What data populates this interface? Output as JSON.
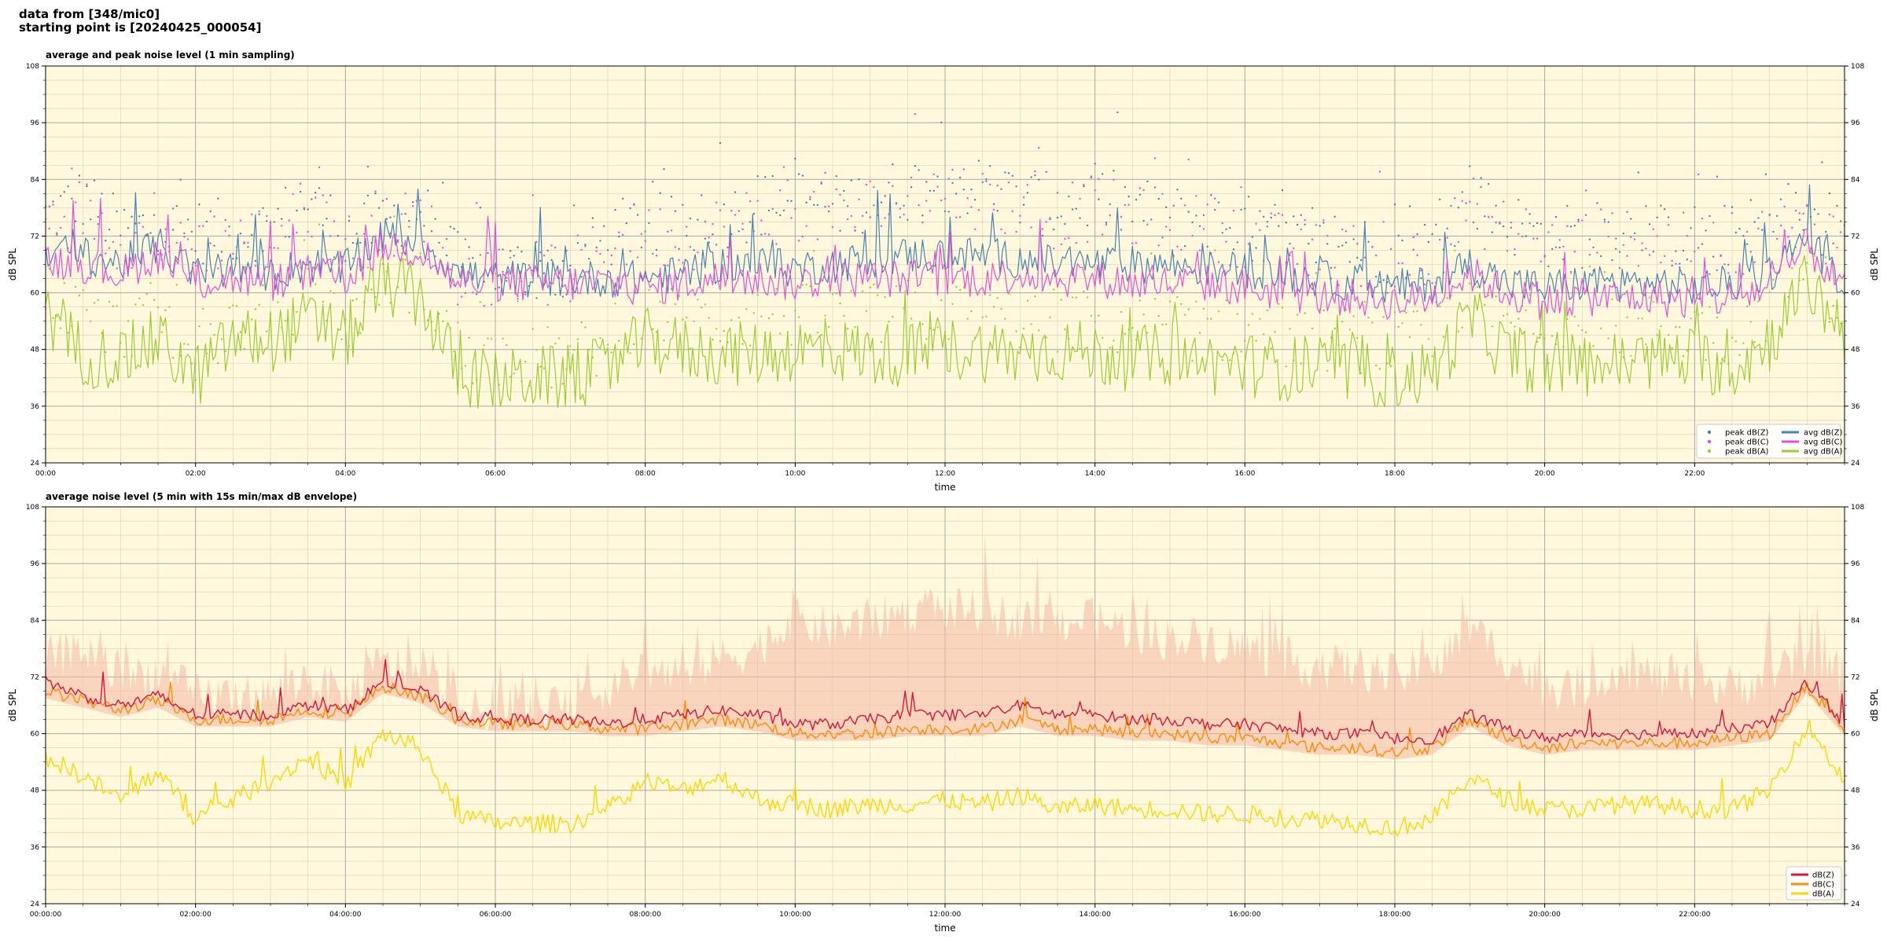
{
  "header": {
    "line1": "data from [348/mic0]",
    "line2": "starting point is [20240425_000054]"
  },
  "colors": {
    "background": "#fff8dc",
    "zcolor": "#4682b4",
    "ccolor": "#e64fd6",
    "acolor": "#9acd32",
    "bottom_z": "#dc143c",
    "bottom_c": "#ff8c00",
    "bottom_a": "#ffd700",
    "envelope": "#f4b8a4"
  },
  "chart_data": [
    {
      "type": "line",
      "title": "average and peak noise level (1 min sampling)",
      "xlabel": "time",
      "ylabel": "dB SPL",
      "xlim": [
        "00:00",
        "24:00"
      ],
      "ylim": [
        24,
        108
      ],
      "yticks": [
        "24",
        "36",
        "48",
        "60",
        "72",
        "84",
        "96",
        "108"
      ],
      "xticks": [
        "00:00",
        "02:00",
        "04:00",
        "06:00",
        "08:00",
        "10:00",
        "12:00",
        "14:00",
        "16:00",
        "18:00",
        "20:00",
        "22:00"
      ],
      "grid": true,
      "legend_position": "bottom-right",
      "x_hours": [
        0,
        0.5,
        1,
        1.5,
        2,
        2.5,
        3,
        3.5,
        4,
        4.5,
        5,
        5.5,
        6,
        6.5,
        7,
        7.5,
        8,
        8.5,
        9,
        9.5,
        10,
        10.5,
        11,
        11.5,
        12,
        12.5,
        13,
        13.5,
        14,
        14.5,
        15,
        15.5,
        16,
        16.5,
        17,
        17.5,
        18,
        18.5,
        19,
        19.5,
        20,
        20.5,
        21,
        21.5,
        22,
        22.5,
        23,
        23.5,
        24
      ],
      "series": [
        {
          "name": "avg dB(Z)",
          "kind": "line",
          "values": [
            69,
            68,
            66,
            70,
            64,
            65,
            64,
            66,
            65,
            72,
            71,
            64,
            63,
            63,
            63,
            63,
            63,
            64,
            66,
            66,
            65,
            66,
            67,
            68,
            68,
            68,
            67,
            66,
            66,
            66,
            66,
            65,
            65,
            64,
            63,
            62,
            61,
            62,
            66,
            62,
            61,
            62,
            62,
            62,
            61,
            62,
            64,
            72,
            62
          ]
        },
        {
          "name": "avg dB(C)",
          "kind": "line",
          "values": [
            67,
            66,
            64,
            68,
            62,
            63,
            62,
            64,
            63,
            70,
            69,
            62,
            62,
            62,
            62,
            62,
            61,
            62,
            63,
            63,
            62,
            63,
            63,
            63,
            63,
            63,
            64,
            63,
            63,
            62,
            62,
            62,
            61,
            60,
            59,
            59,
            58,
            59,
            64,
            60,
            58,
            59,
            59,
            59,
            58,
            59,
            61,
            70,
            60
          ]
        },
        {
          "name": "avg dB(A)",
          "kind": "line",
          "values": [
            55,
            47,
            46,
            50,
            42,
            50,
            50,
            54,
            50,
            62,
            59,
            43,
            41,
            42,
            42,
            44,
            50,
            48,
            47,
            47,
            48,
            48,
            47,
            47,
            48,
            48,
            47,
            48,
            47,
            46,
            47,
            45,
            45,
            44,
            44,
            43,
            42,
            43,
            55,
            47,
            45,
            45,
            45,
            46,
            46,
            44,
            50,
            62,
            52
          ]
        },
        {
          "name": "peak dB(Z)",
          "kind": "scatter",
          "values": [
            76,
            80,
            73,
            74,
            73,
            73,
            74,
            80,
            72,
            75,
            78,
            66,
            65,
            65,
            65,
            72,
            75,
            73,
            76,
            78,
            80,
            78,
            80,
            82,
            84,
            82,
            80,
            78,
            80,
            78,
            76,
            76,
            74,
            72,
            70,
            70,
            68,
            70,
            80,
            75,
            72,
            72,
            74,
            72,
            72,
            72,
            74,
            76,
            74
          ]
        },
        {
          "name": "peak dB(C)",
          "kind": "scatter",
          "values": [
            74,
            78,
            71,
            72,
            71,
            71,
            72,
            78,
            70,
            73,
            76,
            64,
            64,
            64,
            64,
            70,
            73,
            71,
            74,
            76,
            78,
            76,
            78,
            80,
            82,
            80,
            78,
            76,
            78,
            76,
            74,
            74,
            72,
            70,
            68,
            68,
            66,
            68,
            78,
            73,
            70,
            70,
            72,
            70,
            70,
            70,
            72,
            74,
            72
          ]
        },
        {
          "name": "peak dB(A)",
          "kind": "scatter",
          "values": [
            60,
            55,
            52,
            56,
            46,
            54,
            55,
            60,
            53,
            64,
            62,
            48,
            46,
            46,
            46,
            50,
            56,
            54,
            54,
            55,
            55,
            55,
            55,
            56,
            56,
            55,
            54,
            54,
            54,
            53,
            53,
            52,
            52,
            51,
            50,
            50,
            49,
            50,
            60,
            54,
            52,
            52,
            52,
            53,
            52,
            51,
            56,
            66,
            57
          ]
        }
      ]
    },
    {
      "type": "line",
      "title": "average noise level (5 min with 15s min/max dB envelope)",
      "xlabel": "time",
      "ylabel": "dB SPL",
      "xlim": [
        "00:00:00",
        "24:00:00"
      ],
      "ylim": [
        24,
        108
      ],
      "yticks": [
        "24",
        "36",
        "48",
        "60",
        "72",
        "84",
        "96",
        "108"
      ],
      "xticks": [
        "00:00:00",
        "02:00:00",
        "04:00:00",
        "06:00:00",
        "08:00:00",
        "10:00:00",
        "12:00:00",
        "14:00:00",
        "16:00:00",
        "18:00:00",
        "20:00:00",
        "22:00:00"
      ],
      "grid": true,
      "legend_position": "bottom-right",
      "x_hours": [
        0,
        0.5,
        1,
        1.5,
        2,
        2.5,
        3,
        3.5,
        4,
        4.5,
        5,
        5.5,
        6,
        6.5,
        7,
        7.5,
        8,
        8.5,
        9,
        9.5,
        10,
        10.5,
        11,
        11.5,
        12,
        12.5,
        13,
        13.5,
        14,
        14.5,
        15,
        15.5,
        16,
        16.5,
        17,
        17.5,
        18,
        18.5,
        19,
        19.5,
        20,
        20.5,
        21,
        21.5,
        22,
        22.5,
        23,
        23.5,
        24
      ],
      "envelope_max": [
        76,
        78,
        72,
        73,
        68,
        68,
        68,
        72,
        68,
        75,
        73,
        65,
        65,
        65,
        65,
        70,
        74,
        72,
        76,
        78,
        84,
        82,
        84,
        86,
        86,
        86,
        84,
        84,
        84,
        82,
        80,
        80,
        78,
        76,
        74,
        74,
        72,
        74,
        82,
        76,
        70,
        70,
        74,
        72,
        70,
        70,
        72,
        76,
        72
      ],
      "series": [
        {
          "name": "dB(Z)",
          "values": [
            71,
            68,
            66,
            68,
            64,
            64,
            64,
            66,
            65,
            71,
            69,
            64,
            63,
            63,
            63,
            62,
            63,
            64,
            65,
            64,
            62,
            62,
            63,
            64,
            64,
            64,
            66,
            64,
            64,
            63,
            63,
            62,
            62,
            61,
            60,
            60,
            59,
            59,
            64,
            61,
            59,
            60,
            60,
            60,
            60,
            61,
            62,
            71,
            62
          ]
        },
        {
          "name": "dB(C)",
          "values": [
            69,
            67,
            65,
            67,
            63,
            63,
            63,
            65,
            64,
            70,
            68,
            63,
            62,
            62,
            62,
            61,
            61,
            62,
            63,
            62,
            60,
            60,
            60,
            61,
            61,
            61,
            63,
            61,
            61,
            60,
            60,
            59,
            59,
            58,
            57,
            57,
            56,
            57,
            63,
            59,
            57,
            58,
            58,
            58,
            58,
            59,
            60,
            70,
            61
          ]
        },
        {
          "name": "dB(A)",
          "values": [
            55,
            51,
            46,
            52,
            42,
            46,
            50,
            55,
            49,
            60,
            57,
            43,
            41,
            41,
            41,
            44,
            50,
            48,
            51,
            46,
            45,
            44,
            45,
            45,
            46,
            45,
            47,
            44,
            45,
            44,
            44,
            43,
            43,
            42,
            42,
            41,
            40,
            42,
            51,
            46,
            44,
            44,
            45,
            45,
            44,
            44,
            48,
            62,
            50
          ]
        }
      ]
    }
  ]
}
